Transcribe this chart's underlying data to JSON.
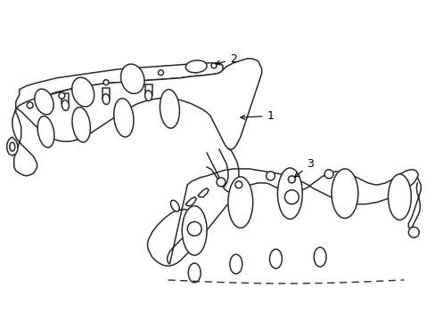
{
  "background_color": "#ffffff",
  "line_color": "#2a2a2a",
  "line_width": 1.1,
  "fig_width": 4.89,
  "fig_height": 3.6,
  "dpi": 100
}
